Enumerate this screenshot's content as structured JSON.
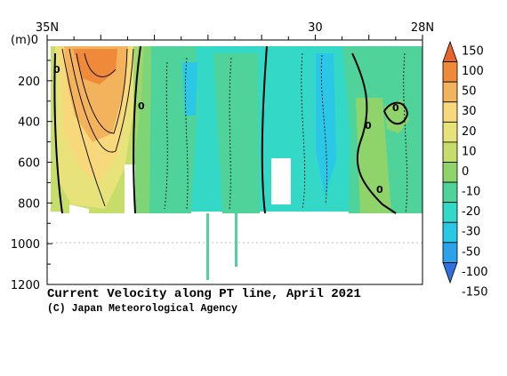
{
  "chart_data": {
    "type": "heatmap",
    "title": "Current Velocity along PT line, April 2021",
    "credit": "(C) Japan Meteorological Agency",
    "xaxis": {
      "ticks": [
        {
          "value": 35,
          "label": "35N"
        },
        {
          "value": 30,
          "label": "30"
        },
        {
          "value": 28,
          "label": "28N"
        }
      ],
      "range": [
        35,
        28
      ]
    },
    "yaxis": {
      "unit_label": "(m)",
      "ticks": [
        0,
        200,
        400,
        600,
        800,
        1000,
        1200
      ],
      "range": [
        0,
        1200
      ]
    },
    "colorbar": {
      "levels": [
        150,
        100,
        50,
        30,
        20,
        10,
        0,
        -10,
        -20,
        -30,
        -50,
        -100,
        -150
      ],
      "colors": [
        "#e8662b",
        "#ef8a3a",
        "#f3b25c",
        "#f7d97c",
        "#e8e27a",
        "#c6dd6b",
        "#8fd46a",
        "#4fd39a",
        "#33d8c6",
        "#2bc7e6",
        "#2aa2ec",
        "#2f6fe0"
      ]
    },
    "contour_labels": [
      "0",
      "0",
      "0",
      "0",
      "0"
    ],
    "fields": {
      "dominant_positive": "#f3b25c",
      "dominant_negative": "#33d8c6",
      "near_zero": "#8fd46a"
    }
  }
}
